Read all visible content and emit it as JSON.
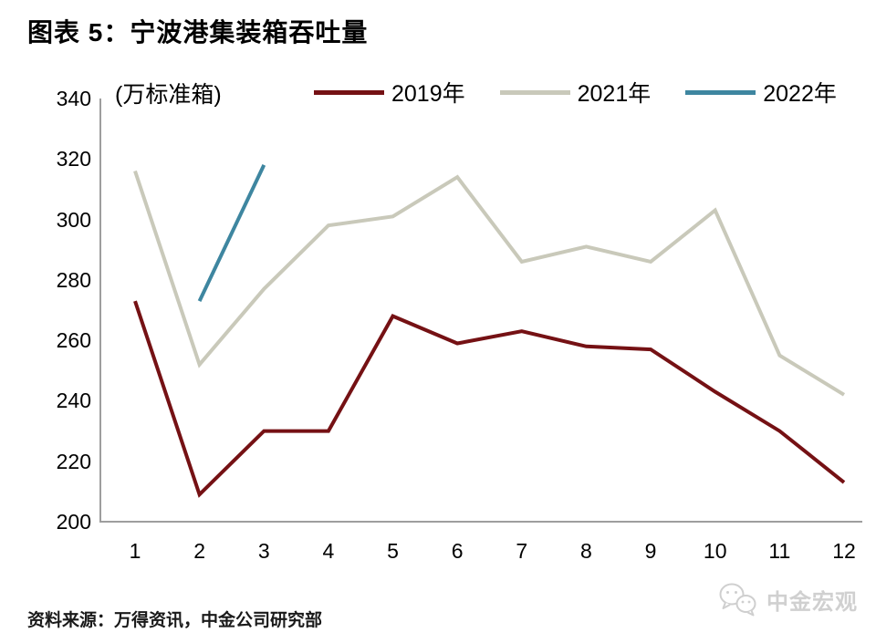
{
  "title": "图表 5：宁波港集装箱吞吐量",
  "legend": {
    "items": [
      {
        "label": "2019年",
        "color": "#751114"
      },
      {
        "label": "2021年",
        "color": "#c9c9ba"
      },
      {
        "label": "2022年",
        "color": "#3e86a0"
      }
    ]
  },
  "footer": {
    "source": "资料来源：万得资讯，中金公司研究部",
    "watermark": "中金宏观"
  },
  "colors": {
    "axis": "#9e9e9e",
    "watermark": "#d0d0d0"
  },
  "chart_data": {
    "type": "line",
    "title": "图表 5：宁波港集装箱吞吐量",
    "unit_label": "(万标准箱)",
    "xlabel": "",
    "ylabel": "(万标准箱)",
    "x": [
      1,
      2,
      3,
      4,
      5,
      6,
      7,
      8,
      9,
      10,
      11,
      12
    ],
    "series": [
      {
        "name": "2019年",
        "color": "#751114",
        "values": [
          273,
          209,
          230,
          230,
          268,
          259,
          263,
          258,
          257,
          243,
          230,
          213
        ]
      },
      {
        "name": "2021年",
        "color": "#c9c9ba",
        "values": [
          316,
          252,
          277,
          298,
          301,
          314,
          286,
          291,
          286,
          303,
          255,
          242
        ]
      },
      {
        "name": "2022年",
        "color": "#3e86a0",
        "values": [
          null,
          273,
          318,
          null,
          null,
          null,
          null,
          null,
          null,
          null,
          null,
          null
        ]
      }
    ],
    "ylim": [
      200,
      340
    ],
    "y_ticks": [
      200,
      220,
      240,
      260,
      280,
      300,
      320,
      340
    ],
    "grid": false,
    "legend_position": "top"
  }
}
